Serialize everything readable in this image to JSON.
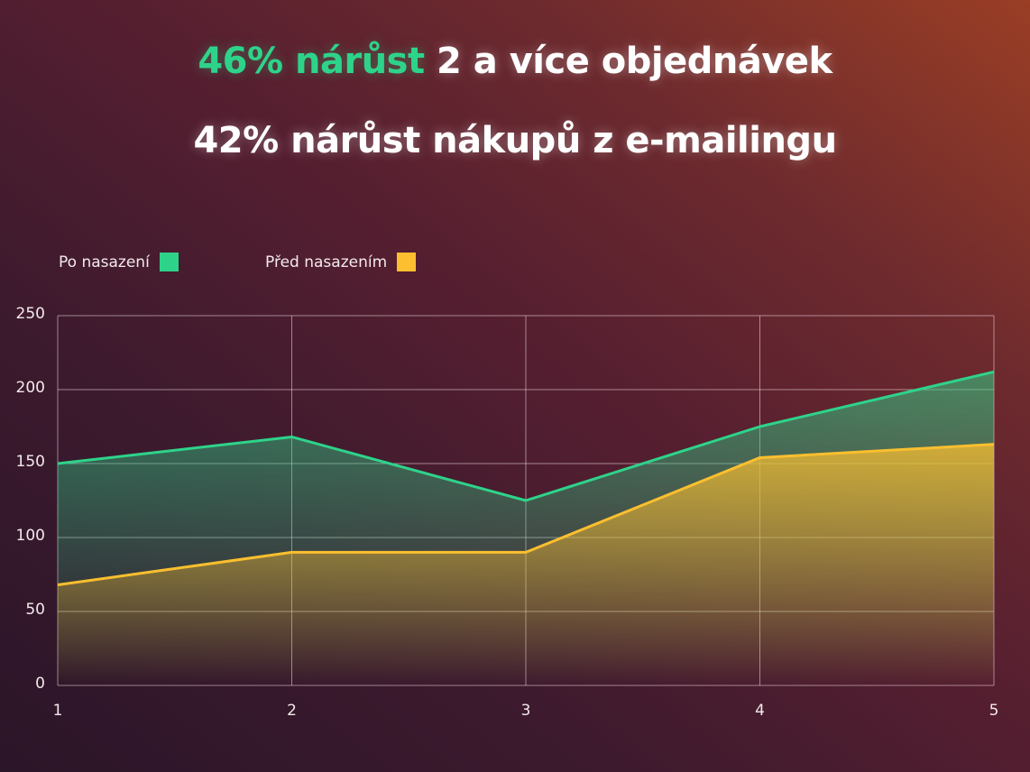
{
  "headline": {
    "line1_accent": "46% nárůst",
    "line1_rest": " 2 a více objednávek",
    "line2": "42% nárůst nákupů z e-mailingu"
  },
  "legend": [
    {
      "label": "Po nasazení",
      "color": "#2ed38a"
    },
    {
      "label": "Před nasazením",
      "color": "#fbbf2f"
    }
  ],
  "axis": {
    "y_ticks": [
      "0",
      "50",
      "100",
      "150",
      "200",
      "250"
    ],
    "x_ticks": [
      "1",
      "2",
      "3",
      "4",
      "5"
    ]
  },
  "chart_data": {
    "type": "area",
    "title": "46% nárůst 2 a více objednávek / 42% nárůst nákupů z e-mailingu",
    "xlabel": "",
    "ylabel": "",
    "x": [
      1,
      2,
      3,
      4,
      5
    ],
    "ylim": [
      0,
      250
    ],
    "grid": true,
    "legend_position": "top-left",
    "series": [
      {
        "name": "Po nasazení",
        "color": "#2ed38a",
        "values": [
          150,
          168,
          125,
          175,
          212
        ]
      },
      {
        "name": "Před nasazením",
        "color": "#fbbf2f",
        "values": [
          68,
          90,
          90,
          154,
          163
        ]
      }
    ]
  }
}
